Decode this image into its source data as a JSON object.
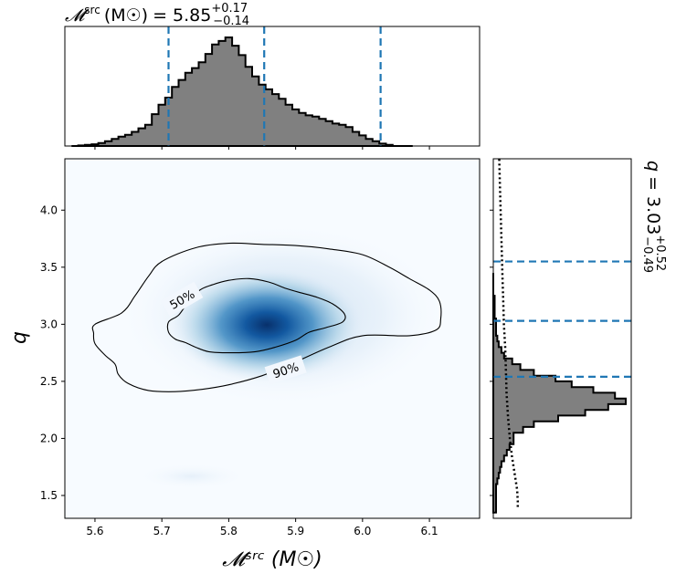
{
  "chart_data": [
    {
      "type": "heatmap",
      "panel": "joint",
      "xlabel": "𝓜ˢʳᶜ (M☉)",
      "ylabel": "q",
      "xlim": [
        5.555,
        6.175
      ],
      "ylim": [
        1.3,
        4.45
      ],
      "xticks": [
        "5.6",
        "5.7",
        "5.8",
        "5.9",
        "6.0",
        "6.1"
      ],
      "xtick_values": [
        5.6,
        5.7,
        5.8,
        5.9,
        6.0,
        6.1
      ],
      "yticks": [
        "1.5",
        "2.0",
        "2.5",
        "3.0",
        "3.5",
        "4.0"
      ],
      "ytick_values": [
        1.5,
        2.0,
        2.5,
        3.0,
        3.5,
        4.0
      ],
      "density_peak": {
        "x": 5.855,
        "y": 2.99
      },
      "contour_labels": [
        "50%",
        "90%"
      ],
      "contour_50": [
        [
          5.775,
          3.345
        ],
        [
          5.8,
          3.385
        ],
        [
          5.83,
          3.4
        ],
        [
          5.86,
          3.37
        ],
        [
          5.885,
          3.315
        ],
        [
          5.905,
          3.28
        ],
        [
          5.93,
          3.24
        ],
        [
          5.955,
          3.18
        ],
        [
          5.973,
          3.09
        ],
        [
          5.97,
          3.02
        ],
        [
          5.945,
          2.97
        ],
        [
          5.92,
          2.93
        ],
        [
          5.9,
          2.86
        ],
        [
          5.87,
          2.8
        ],
        [
          5.84,
          2.76
        ],
        [
          5.8,
          2.75
        ],
        [
          5.77,
          2.76
        ],
        [
          5.75,
          2.8
        ],
        [
          5.735,
          2.84
        ],
        [
          5.72,
          2.87
        ],
        [
          5.71,
          2.93
        ],
        [
          5.71,
          3.02
        ],
        [
          5.725,
          3.08
        ],
        [
          5.74,
          3.2
        ],
        [
          5.757,
          3.3
        ]
      ],
      "contour_90": [
        [
          5.7,
          3.55
        ],
        [
          5.75,
          3.67
        ],
        [
          5.8,
          3.71
        ],
        [
          5.85,
          3.7
        ],
        [
          5.9,
          3.69
        ],
        [
          5.95,
          3.66
        ],
        [
          6.0,
          3.61
        ],
        [
          6.04,
          3.5
        ],
        [
          6.07,
          3.4
        ],
        [
          6.1,
          3.3
        ],
        [
          6.115,
          3.2
        ],
        [
          6.117,
          3.05
        ],
        [
          6.11,
          2.95
        ],
        [
          6.07,
          2.9
        ],
        [
          6.0,
          2.9
        ],
        [
          5.95,
          2.8
        ],
        [
          5.9,
          2.67
        ],
        [
          5.85,
          2.55
        ],
        [
          5.8,
          2.47
        ],
        [
          5.76,
          2.43
        ],
        [
          5.72,
          2.41
        ],
        [
          5.68,
          2.42
        ],
        [
          5.65,
          2.48
        ],
        [
          5.635,
          2.56
        ],
        [
          5.63,
          2.65
        ],
        [
          5.615,
          2.73
        ],
        [
          5.6,
          2.83
        ],
        [
          5.598,
          2.92
        ],
        [
          5.6,
          3.0
        ],
        [
          5.64,
          3.1
        ],
        [
          5.66,
          3.25
        ],
        [
          5.68,
          3.42
        ]
      ]
    },
    {
      "type": "histogram",
      "panel": "top-marginal",
      "title_symbol": "𝓜",
      "title_superscript": "src",
      "title_unit": "(M☉)",
      "title_value": "= 5.85",
      "title_plus": "+0.17",
      "title_minus": "−0.14",
      "xlim": [
        5.555,
        6.175
      ],
      "bin_edges_start": 5.565,
      "bin_width": 0.01,
      "counts": [
        0,
        0.5,
        1,
        1.5,
        2.5,
        4,
        6,
        8,
        9.5,
        12,
        15,
        18,
        27,
        35,
        41,
        50,
        56,
        62,
        66,
        71,
        78,
        86,
        89,
        92,
        85,
        77,
        67,
        59,
        52,
        48,
        44,
        40,
        35,
        31,
        28,
        26,
        25,
        23,
        21,
        19,
        18,
        16,
        12,
        9,
        6,
        4,
        2,
        1,
        0,
        0,
        0
      ],
      "quantile_lines": [
        5.71,
        5.853,
        6.027
      ],
      "quantile_color": "#1f77b4",
      "fill": "#808080"
    },
    {
      "type": "histogram",
      "panel": "right-marginal",
      "orientation": "horizontal",
      "title_symbol": "q",
      "title_value": "= 3.03",
      "title_plus": "+0.52",
      "title_minus": "−0.49",
      "ylim": [
        1.3,
        4.45
      ],
      "bin_edges_start": 1.35,
      "bin_width": 0.05,
      "counts": [
        0.02,
        0.02,
        0.02,
        0.02,
        0.02,
        0.03,
        0.04,
        0.05,
        0.06,
        0.08,
        0.1,
        0.12,
        0.15,
        0.15,
        0.22,
        0.3,
        0.48,
        0.68,
        0.85,
        0.98,
        0.9,
        0.74,
        0.58,
        0.46,
        0.3,
        0.2,
        0.14,
        0.08,
        0.06,
        0.04,
        0.03,
        0.02,
        0.02,
        0.02,
        0.01,
        0.01,
        0.01,
        0.01,
        0,
        0,
        0,
        0
      ],
      "quantile_lines": [
        2.54,
        3.03,
        3.55
      ],
      "quantile_color": "#1f77b4",
      "fill": "#808080",
      "prior_curve": [
        [
          0.185,
          1.4
        ],
        [
          0.185,
          1.45
        ],
        [
          0.18,
          1.55
        ],
        [
          0.16,
          1.7
        ],
        [
          0.14,
          1.85
        ],
        [
          0.125,
          2.0
        ],
        [
          0.11,
          2.2
        ],
        [
          0.1,
          2.4
        ],
        [
          0.095,
          2.6
        ],
        [
          0.09,
          2.8
        ],
        [
          0.08,
          3.0
        ],
        [
          0.075,
          3.2
        ],
        [
          0.07,
          3.4
        ],
        [
          0.065,
          3.6
        ],
        [
          0.06,
          3.8
        ],
        [
          0.055,
          4.0
        ],
        [
          0.05,
          4.2
        ],
        [
          0.045,
          4.45
        ]
      ]
    }
  ]
}
